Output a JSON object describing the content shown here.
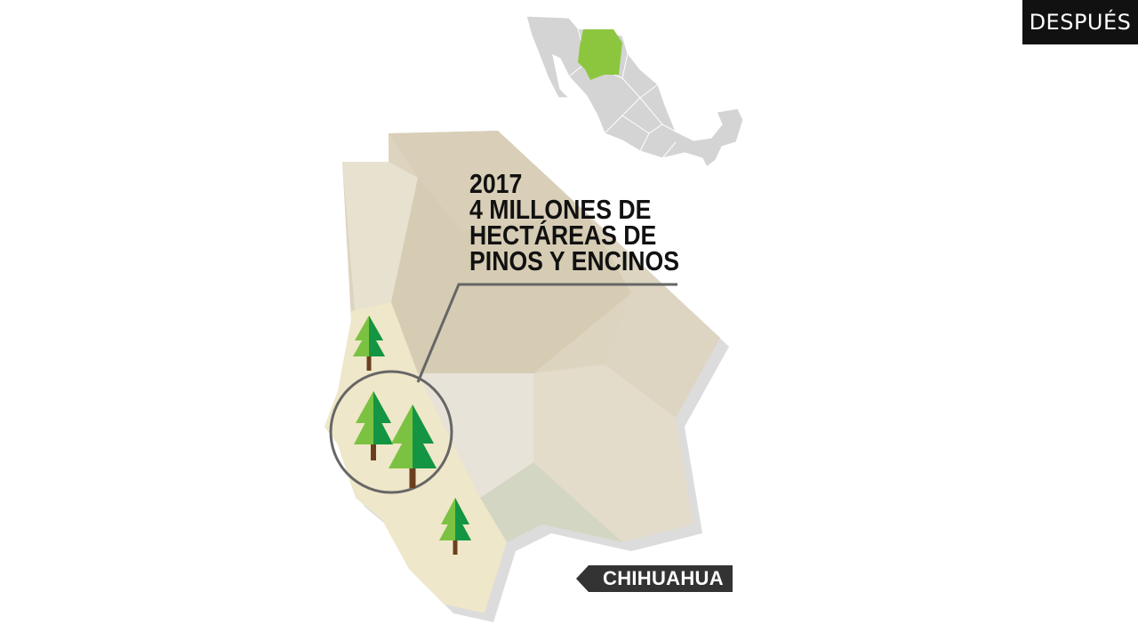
{
  "badge": {
    "label": "DESPUÉS"
  },
  "callout": {
    "year": "2017",
    "line1": "4 MILLONES DE",
    "line2": "HECTÁREAS DE",
    "line3": "PINOS Y ENCINOS"
  },
  "state_tag": {
    "label": "CHIHUAHUA"
  },
  "colors": {
    "highlight": "#8cc63f",
    "country_fill": "#d4d4d4",
    "forest_band": "#efe7c9",
    "tree_light": "#7cc242",
    "tree_dark": "#139543",
    "trunk": "#6b3f1d",
    "dark_label": "#333333"
  }
}
